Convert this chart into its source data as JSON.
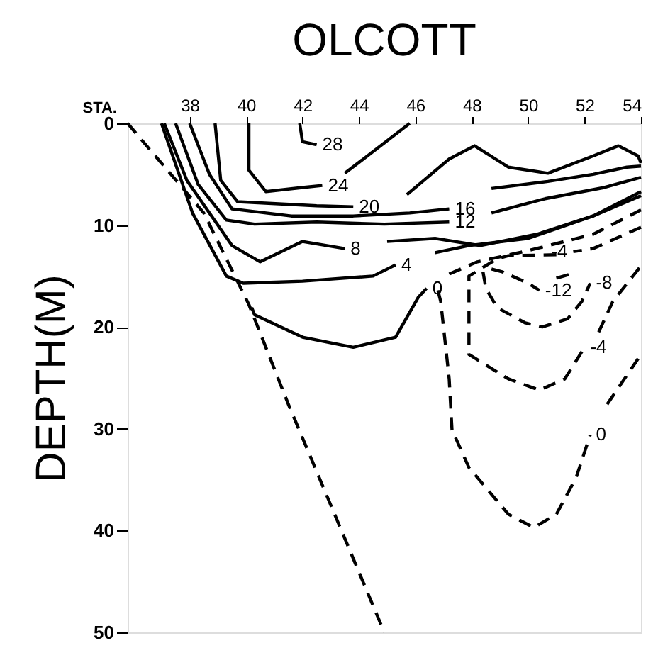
{
  "chart_data": {
    "type": "line",
    "title": "OLCOTT",
    "xlabel": "STA.",
    "ylabel": "DEPTH(M)",
    "xlim": [
      35.8,
      54
    ],
    "xticks": [
      38,
      40,
      42,
      44,
      46,
      48,
      50,
      52,
      54
    ],
    "ylim": [
      50,
      0
    ],
    "yticks": [
      0,
      10,
      20,
      30,
      40,
      50
    ],
    "grid": false,
    "legend": false,
    "marker": "none",
    "series": [
      {
        "name": "28",
        "color": "#000000",
        "line_style": "solid",
        "x": [
          41.9,
          42.0,
          42.5
        ],
        "values": [
          0,
          1.8,
          2.1
        ]
      },
      {
        "name": "24",
        "color": "#000000",
        "line_style": "solid",
        "x": [
          40.1,
          40.1,
          40.7,
          42.0,
          42.7
        ],
        "values": [
          0,
          4.6,
          6.7,
          6.3,
          6.1
        ]
      },
      {
        "color": "#000000",
        "line_style": "solid",
        "x": [
          43.5,
          45.8
        ],
        "values": [
          4.9,
          0
        ]
      },
      {
        "name": "20",
        "color": "#000000",
        "line_style": "solid",
        "x": [
          38.9,
          39.1,
          39.7,
          42.5,
          43.8
        ],
        "values": [
          0,
          5.6,
          7.7,
          8.1,
          8.2
        ]
      },
      {
        "color": "#000000",
        "line_style": "solid",
        "x": [
          45.7,
          47.2,
          48.1,
          49.3,
          50.7,
          52.3,
          53.2,
          53.9,
          54
        ],
        "values": [
          7.0,
          3.5,
          2.2,
          4.3,
          4.9,
          3.2,
          2.2,
          3.2,
          3.9
        ]
      },
      {
        "name": "16",
        "color": "#000000",
        "line_style": "solid",
        "x": [
          38.0,
          38.7,
          39.5,
          41.6,
          43.8,
          45.8,
          47.2
        ],
        "values": [
          0,
          5.0,
          8.4,
          9.1,
          9.1,
          8.8,
          8.4
        ]
      },
      {
        "color": "#000000",
        "line_style": "solid",
        "x": [
          48.7,
          50.7,
          52.3,
          53.5,
          54
        ],
        "values": [
          6.4,
          5.7,
          5.0,
          4.3,
          4.2
        ]
      },
      {
        "name": "12",
        "color": "#000000",
        "line_style": "solid",
        "x": [
          37.5,
          38.3,
          39.3,
          40.3,
          42.5,
          44.9,
          47.2
        ],
        "values": [
          0,
          6.0,
          9.5,
          9.9,
          9.7,
          9.9,
          9.7
        ]
      },
      {
        "color": "#000000",
        "line_style": "solid",
        "x": [
          48.7,
          50.6,
          52.7,
          54
        ],
        "values": [
          8.8,
          7.4,
          6.3,
          5.3
        ]
      },
      {
        "name": "8",
        "color": "#000000",
        "line_style": "solid",
        "x": [
          37.1,
          37.9,
          39.5,
          40.5,
          42.0,
          43.5
        ],
        "values": [
          0,
          5.6,
          12.0,
          13.6,
          11.6,
          12.3
        ]
      },
      {
        "color": "#000000",
        "line_style": "solid",
        "x": [
          45.0,
          46.7,
          48.3,
          50.3,
          52.3,
          54
        ],
        "values": [
          11.6,
          11.3,
          12.0,
          10.9,
          9.1,
          6.7
        ]
      },
      {
        "name": "4",
        "color": "#000000",
        "line_style": "solid",
        "x": [
          37.0,
          38.1,
          39.3,
          39.9,
          42.0,
          44.5,
          45.3
        ],
        "values": [
          0,
          8.8,
          15.0,
          15.7,
          15.5,
          15.0,
          13.9
        ]
      },
      {
        "color": "#000000",
        "line_style": "solid",
        "x": [
          46.7,
          47.9,
          50.0,
          52.3,
          54
        ],
        "values": [
          12.7,
          12.0,
          11.3,
          9.1,
          7.1
        ]
      },
      {
        "name": "0",
        "color": "#000000",
        "line_style": "solid",
        "x": [
          40.2,
          40.3,
          42.0,
          43.8,
          45.3,
          46.1,
          46.4
        ],
        "values": [
          18.1,
          18.8,
          21.0,
          22.0,
          21.0,
          17.1,
          16.2
        ]
      },
      {
        "color": "#000000",
        "line_style": "dashed",
        "x": [
          47.2,
          48.2,
          50.0,
          52.3,
          54
        ],
        "values": [
          14.8,
          13.6,
          12.5,
          10.9,
          8.5
        ]
      },
      {
        "name": "0",
        "color": "#000000",
        "line_style": "dashed",
        "x": [
          46.8,
          46.9,
          47.2,
          47.3,
          47.9,
          49.3,
          50.2,
          51.0,
          51.7,
          52.2
        ],
        "values": [
          16.4,
          17.5,
          25.1,
          30.1,
          33.8,
          38.4,
          39.7,
          38.4,
          34.8,
          30.6
        ]
      },
      {
        "color": "#000000",
        "line_style": "dashed",
        "x": [
          52.8,
          54
        ],
        "values": [
          27.6,
          22.7
        ]
      },
      {
        "name": "-4",
        "color": "#000000",
        "line_style": "dashed",
        "x": [
          54,
          52.3,
          51.6
        ],
        "values": [
          10.2,
          12.3,
          12.6
        ]
      },
      {
        "name": "-4",
        "color": "#000000",
        "line_style": "dashed",
        "x": [
          51.0,
          49.3,
          48.9,
          47.9,
          47.9,
          49.3,
          50.4,
          51.3,
          52.0
        ],
        "values": [
          12.9,
          13.0,
          13.3,
          15.0,
          22.7,
          25.1,
          26.2,
          25.1,
          22.0
        ]
      },
      {
        "color": "#000000",
        "line_style": "dashed",
        "x": [
          52.5,
          53.0,
          54
        ],
        "values": [
          20.5,
          17.5,
          14.0
        ]
      },
      {
        "name": "-8",
        "color": "#000000",
        "line_style": "dashed",
        "x": [
          48.4,
          48.5,
          48.9,
          49.9,
          50.5,
          51.4,
          51.9,
          52.2
        ],
        "values": [
          14.6,
          16.2,
          18.1,
          19.6,
          20.0,
          19.2,
          17.5,
          15.7
        ]
      },
      {
        "color": "#000000",
        "line_style": "dashed",
        "x": [
          51.0,
          51.5
        ],
        "values": [
          15.2,
          14.8
        ]
      },
      {
        "name": "-12",
        "color": "#000000",
        "line_style": "dashed",
        "x": [
          48.7,
          49.1,
          50.0,
          50.4
        ],
        "values": [
          14.3,
          14.6,
          15.7,
          16.4
        ]
      },
      {
        "color": "#000000",
        "line_style": "dashed",
        "x": [
          35.8,
          38.5,
          40.1,
          41.5,
          44.9
        ],
        "values": [
          0,
          8.8,
          17.8,
          27.6,
          50
        ]
      }
    ]
  }
}
